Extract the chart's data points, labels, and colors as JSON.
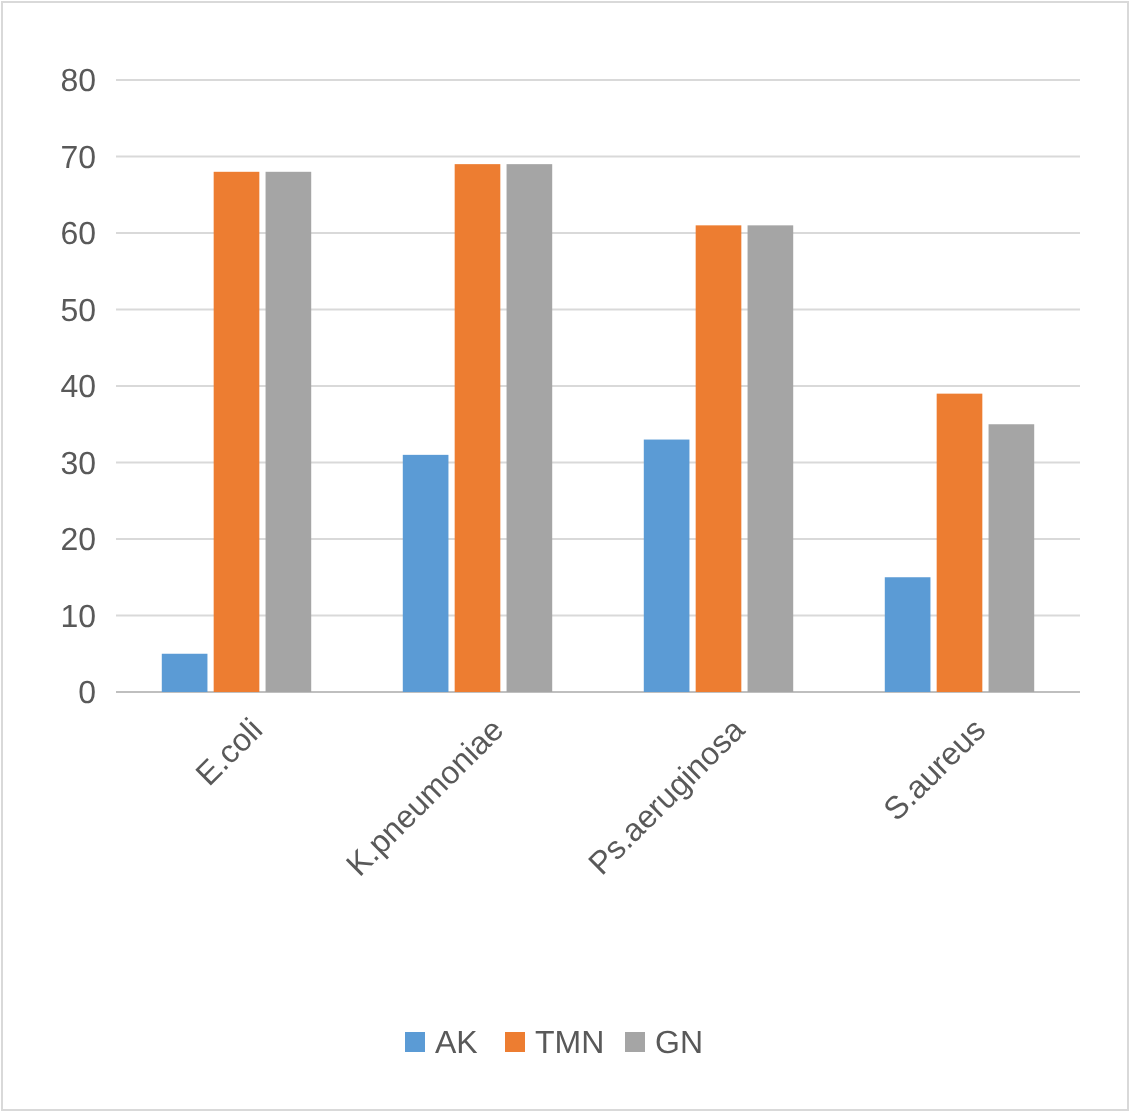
{
  "chart_data": {
    "type": "bar",
    "categories": [
      "E.coli",
      "K.pneumoniae",
      "Ps.aeruginosa",
      "S.aureus"
    ],
    "series": [
      {
        "name": "AK",
        "color": "#5b9bd5",
        "values": [
          5,
          31,
          33,
          15
        ]
      },
      {
        "name": "TMN",
        "color": "#ed7d31",
        "values": [
          68,
          69,
          61,
          39
        ]
      },
      {
        "name": "GN",
        "color": "#a5a5a5",
        "values": [
          68,
          69,
          61,
          35
        ]
      }
    ],
    "ylim": [
      0,
      80
    ],
    "yticks": [
      0,
      10,
      20,
      30,
      40,
      50,
      60,
      70,
      80
    ],
    "grid": "y",
    "legend": "bottom"
  }
}
